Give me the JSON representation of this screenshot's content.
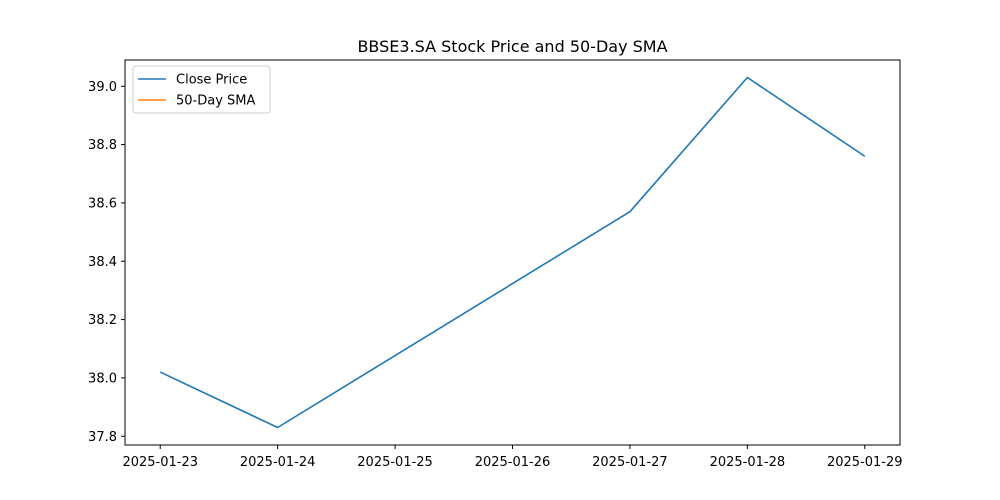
{
  "chart_data": {
    "type": "line",
    "title": "BBSE3.SA Stock Price and 50-Day SMA",
    "xlabel": "",
    "ylabel": "",
    "x": [
      "2025-01-23",
      "2025-01-24",
      "2025-01-25",
      "2025-01-26",
      "2025-01-27",
      "2025-01-28",
      "2025-01-29"
    ],
    "x_tick_labels": [
      "2025-01-23",
      "2025-01-24",
      "2025-01-25",
      "2025-01-26",
      "2025-01-27",
      "2025-01-28",
      "2025-01-29"
    ],
    "y_ticks": [
      37.8,
      38.0,
      38.2,
      38.4,
      38.6,
      38.8,
      39.0
    ],
    "y_tick_labels": [
      "37.8",
      "38.0",
      "38.2",
      "38.4",
      "38.6",
      "38.8",
      "39.0"
    ],
    "ylim": [
      37.77,
      39.09
    ],
    "grid": false,
    "legend_position": "upper-left",
    "series": [
      {
        "name": "Close Price",
        "color": "#1f77b4",
        "points": [
          {
            "x": "2025-01-23",
            "y": 38.02
          },
          {
            "x": "2025-01-24",
            "y": 37.83
          },
          {
            "x": "2025-01-27",
            "y": 38.57
          },
          {
            "x": "2025-01-28",
            "y": 39.03
          },
          {
            "x": "2025-01-29",
            "y": 38.76
          }
        ]
      },
      {
        "name": "50-Day SMA",
        "color": "#ff7f0e",
        "points": []
      }
    ]
  }
}
